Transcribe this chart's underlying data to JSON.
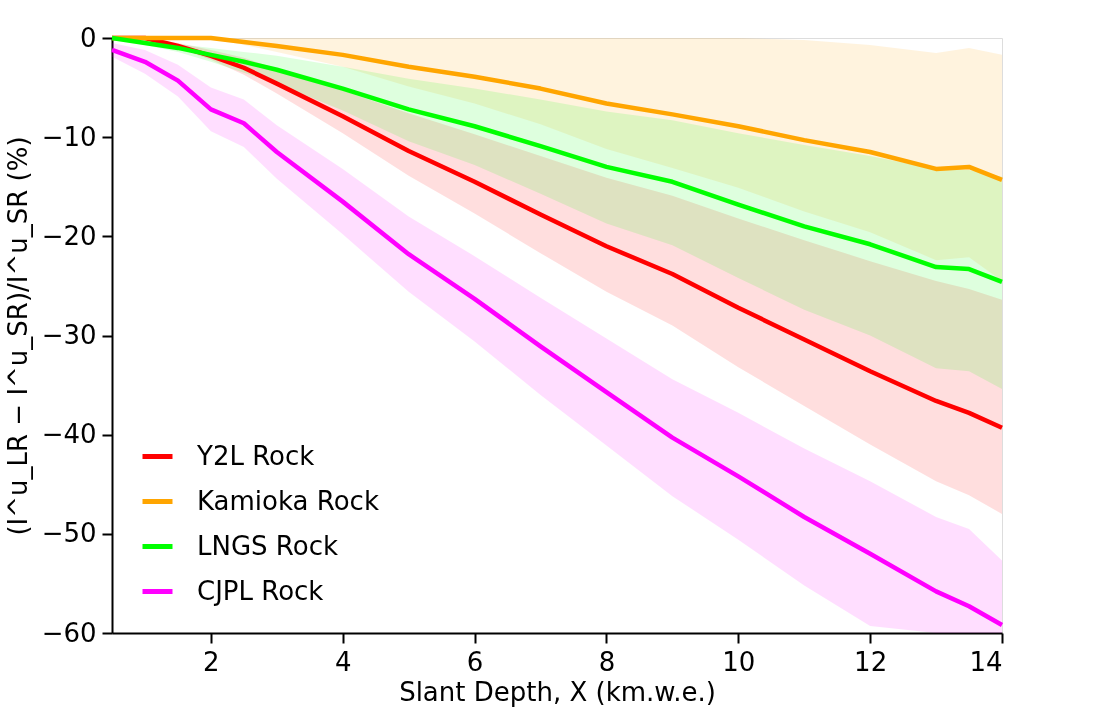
{
  "chart_data": {
    "type": "line",
    "xlabel": "Slant Depth, X (km.w.e.)",
    "ylabel": "(I^u_LR − I^u_SR)/I^u_SR (%)",
    "x": [
      0.5,
      1,
      1.5,
      2,
      2.5,
      3,
      4,
      5,
      6,
      7,
      8,
      9,
      10,
      11,
      12,
      13,
      13.5,
      14
    ],
    "series": [
      {
        "name": "Y2L Rock",
        "color": "#ff0000",
        "values": [
          0,
          0,
          -0.8,
          -1.8,
          -3,
          -4.6,
          -7.9,
          -11.4,
          -14.5,
          -17.8,
          -21,
          -23.8,
          -27.2,
          -30.4,
          -33.6,
          -36.6,
          -37.8,
          -39.3
        ],
        "upper": [
          0,
          0,
          -0.5,
          -1.2,
          -2,
          -3.1,
          -5.3,
          -7.6,
          -9.7,
          -11.9,
          -14.1,
          -15.9,
          -18.2,
          -20.4,
          -22.5,
          -24.5,
          -25.3,
          -26.4
        ],
        "lower": [
          0,
          0,
          -1,
          -2.2,
          -3.7,
          -5.6,
          -9.6,
          -13.9,
          -17.7,
          -21.7,
          -25.6,
          -29,
          -33.2,
          -37.1,
          -41,
          -44.7,
          -46.1,
          -48
        ]
      },
      {
        "name": "Kamioka Rock",
        "color": "#ffa500",
        "values": [
          0,
          0,
          0,
          0,
          -0.4,
          -0.8,
          -1.7,
          -2.9,
          -3.9,
          -5.1,
          -6.6,
          -7.7,
          -8.9,
          -10.3,
          -11.5,
          -13.2,
          -13,
          -14.3
        ],
        "upper": [
          0,
          0,
          0,
          0,
          0,
          0,
          0,
          0,
          0,
          0,
          0,
          0,
          0,
          -0.2,
          -0.7,
          -1.5,
          -1,
          -1.7
        ],
        "lower": [
          0,
          0,
          0,
          0,
          -0.7,
          -1.4,
          -2.9,
          -4.9,
          -6.6,
          -8.7,
          -11.2,
          -13.1,
          -15.1,
          -17.5,
          -19.6,
          -22.4,
          -22.1,
          -24.5
        ]
      },
      {
        "name": "LNGS Rock",
        "color": "#00ff00",
        "values": [
          0,
          -0.5,
          -1,
          -1.7,
          -2.4,
          -3.2,
          -5.1,
          -7.2,
          -8.9,
          -10.9,
          -13,
          -14.5,
          -16.8,
          -19,
          -20.8,
          -23.1,
          -23.3,
          -24.6
        ],
        "upper": [
          0,
          -0.3,
          -0.6,
          -1,
          -1.4,
          -1.8,
          -2.9,
          -4.1,
          -5.1,
          -6.2,
          -7.4,
          -8.3,
          -9.6,
          -10.8,
          -11.9,
          -13.2,
          -13.3,
          -14
        ],
        "lower": [
          0,
          -0.7,
          -1.4,
          -2.4,
          -3.5,
          -4.6,
          -7.3,
          -10.4,
          -12.8,
          -15.7,
          -18.7,
          -20.9,
          -24.2,
          -27.4,
          -30,
          -33.3,
          -33.6,
          -35.4
        ]
      },
      {
        "name": "CJPL Rock",
        "color": "#ff00ff",
        "values": [
          -1.2,
          -2.4,
          -4.3,
          -7.2,
          -8.6,
          -11.5,
          -16.5,
          -21.8,
          -26.3,
          -31.1,
          -35.7,
          -40.3,
          -44.2,
          -48.3,
          -52,
          -55.8,
          -57.3,
          -59.2
        ],
        "upper": [
          -0.5,
          -1.2,
          -2.7,
          -5,
          -6.2,
          -8.8,
          -13.2,
          -18,
          -22,
          -26.2,
          -30.3,
          -34.4,
          -37.8,
          -41.4,
          -44.7,
          -48.3,
          -49.5,
          -52.7
        ],
        "lower": [
          -1.9,
          -3.6,
          -5.9,
          -9.4,
          -11,
          -14.2,
          -19.8,
          -25.6,
          -30.6,
          -36,
          -41.1,
          -46.2,
          -50.6,
          -55.2,
          -59.3,
          -60,
          -60,
          -60
        ]
      }
    ],
    "xlim": [
      0.5,
      14
    ],
    "xticks": [
      2,
      4,
      6,
      8,
      10,
      12,
      14
    ],
    "ylim": [
      -60,
      0
    ],
    "yticks": [
      -60,
      -50,
      -40,
      -30,
      -20,
      -10,
      0
    ],
    "grid": false,
    "legend": "bottom left",
    "marker": "none",
    "line_style": "solid"
  }
}
